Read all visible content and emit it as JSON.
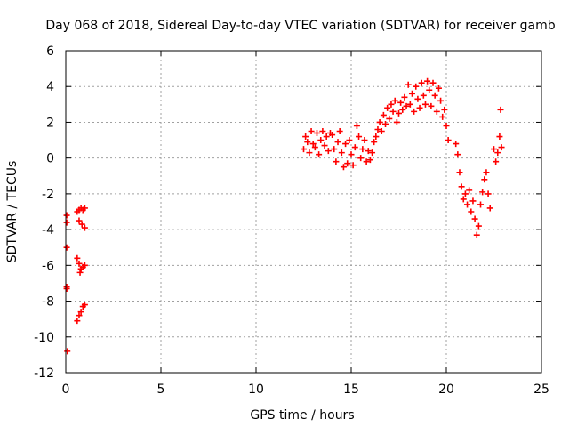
{
  "chart_data": {
    "type": "scatter",
    "title": "Day 068 of 2018, Sidereal Day-to-day VTEC variation (SDTVAR) for receiver gamb",
    "xlabel": "GPS time / hours",
    "ylabel": "SDTVAR / TECUs",
    "xlim": [
      0,
      25
    ],
    "ylim": [
      -12,
      6
    ],
    "xticks": [
      0,
      5,
      10,
      15,
      20,
      25
    ],
    "yticks": [
      -12,
      -10,
      -8,
      -6,
      -4,
      -2,
      0,
      2,
      4,
      6
    ],
    "grid": true,
    "marker": "plus",
    "color": "#ff0000",
    "series": [
      {
        "values": [
          [
            0.05,
            -3.2
          ],
          [
            0.05,
            -3.6
          ],
          [
            0.05,
            -5.0
          ],
          [
            0.05,
            -7.2
          ],
          [
            0.05,
            -7.3
          ],
          [
            0.08,
            -10.8
          ],
          [
            0.6,
            -3.0
          ],
          [
            0.7,
            -2.9
          ],
          [
            0.8,
            -2.8
          ],
          [
            0.9,
            -2.9
          ],
          [
            1.0,
            -2.8
          ],
          [
            0.7,
            -3.5
          ],
          [
            0.85,
            -3.7
          ],
          [
            1.0,
            -3.9
          ],
          [
            0.6,
            -5.6
          ],
          [
            0.7,
            -5.9
          ],
          [
            0.8,
            -6.2
          ],
          [
            0.9,
            -6.1
          ],
          [
            1.0,
            -6.0
          ],
          [
            0.75,
            -6.4
          ],
          [
            0.6,
            -9.1
          ],
          [
            0.7,
            -8.8
          ],
          [
            0.8,
            -8.6
          ],
          [
            0.9,
            -8.3
          ],
          [
            1.0,
            -8.2
          ],
          [
            12.5,
            0.5
          ],
          [
            12.6,
            1.2
          ],
          [
            12.7,
            0.9
          ],
          [
            12.8,
            0.3
          ],
          [
            12.9,
            1.5
          ],
          [
            13.0,
            0.8
          ],
          [
            13.1,
            0.6
          ],
          [
            13.2,
            1.4
          ],
          [
            13.3,
            0.2
          ],
          [
            13.4,
            1.0
          ],
          [
            13.5,
            1.5
          ],
          [
            13.6,
            0.7
          ],
          [
            13.7,
            1.2
          ],
          [
            13.8,
            0.4
          ],
          [
            13.9,
            1.4
          ],
          [
            14.0,
            1.3
          ],
          [
            14.1,
            0.5
          ],
          [
            14.2,
            -0.2
          ],
          [
            14.3,
            0.9
          ],
          [
            14.4,
            1.5
          ],
          [
            14.5,
            0.3
          ],
          [
            14.6,
            -0.5
          ],
          [
            14.7,
            0.8
          ],
          [
            14.8,
            -0.3
          ],
          [
            14.9,
            1.0
          ],
          [
            15.0,
            0.2
          ],
          [
            15.1,
            -0.4
          ],
          [
            15.2,
            0.6
          ],
          [
            15.3,
            1.8
          ],
          [
            15.4,
            1.2
          ],
          [
            15.5,
            0.0
          ],
          [
            15.6,
            0.5
          ],
          [
            15.7,
            1.0
          ],
          [
            15.8,
            -0.2
          ],
          [
            15.9,
            0.4
          ],
          [
            16.0,
            -0.1
          ],
          [
            16.1,
            0.3
          ],
          [
            16.2,
            0.9
          ],
          [
            16.3,
            1.2
          ],
          [
            16.4,
            1.6
          ],
          [
            16.5,
            2.0
          ],
          [
            16.6,
            1.5
          ],
          [
            16.7,
            2.4
          ],
          [
            16.8,
            1.9
          ],
          [
            16.9,
            2.8
          ],
          [
            17.0,
            2.2
          ],
          [
            17.1,
            3.0
          ],
          [
            17.2,
            2.6
          ],
          [
            17.3,
            3.2
          ],
          [
            17.4,
            2.0
          ],
          [
            17.5,
            2.5
          ],
          [
            17.6,
            3.1
          ],
          [
            17.7,
            2.7
          ],
          [
            17.8,
            3.4
          ],
          [
            17.9,
            2.9
          ],
          [
            18.0,
            4.1
          ],
          [
            18.1,
            3.0
          ],
          [
            18.2,
            3.6
          ],
          [
            18.3,
            2.6
          ],
          [
            18.4,
            4.0
          ],
          [
            18.5,
            3.3
          ],
          [
            18.6,
            2.8
          ],
          [
            18.7,
            4.2
          ],
          [
            18.8,
            3.5
          ],
          [
            18.9,
            3.0
          ],
          [
            19.0,
            4.3
          ],
          [
            19.1,
            3.8
          ],
          [
            19.2,
            2.9
          ],
          [
            19.3,
            4.2
          ],
          [
            19.4,
            3.5
          ],
          [
            19.5,
            2.6
          ],
          [
            19.6,
            3.9
          ],
          [
            19.7,
            3.2
          ],
          [
            19.8,
            2.3
          ],
          [
            19.9,
            2.7
          ],
          [
            20.0,
            1.8
          ],
          [
            20.1,
            1.0
          ],
          [
            20.5,
            0.8
          ],
          [
            20.6,
            0.2
          ],
          [
            20.7,
            -0.8
          ],
          [
            20.8,
            -1.6
          ],
          [
            20.9,
            -2.3
          ],
          [
            21.0,
            -2.0
          ],
          [
            21.1,
            -2.6
          ],
          [
            21.2,
            -1.8
          ],
          [
            21.3,
            -3.0
          ],
          [
            21.4,
            -2.4
          ],
          [
            21.5,
            -3.4
          ],
          [
            21.6,
            -4.3
          ],
          [
            21.7,
            -3.8
          ],
          [
            21.8,
            -2.6
          ],
          [
            21.9,
            -1.9
          ],
          [
            22.0,
            -1.2
          ],
          [
            22.1,
            -0.8
          ],
          [
            22.2,
            -2.0
          ],
          [
            22.3,
            -2.8
          ],
          [
            22.5,
            0.5
          ],
          [
            22.6,
            -0.2
          ],
          [
            22.7,
            0.3
          ],
          [
            22.8,
            1.2
          ],
          [
            22.9,
            0.6
          ],
          [
            22.85,
            2.7
          ]
        ]
      }
    ]
  }
}
